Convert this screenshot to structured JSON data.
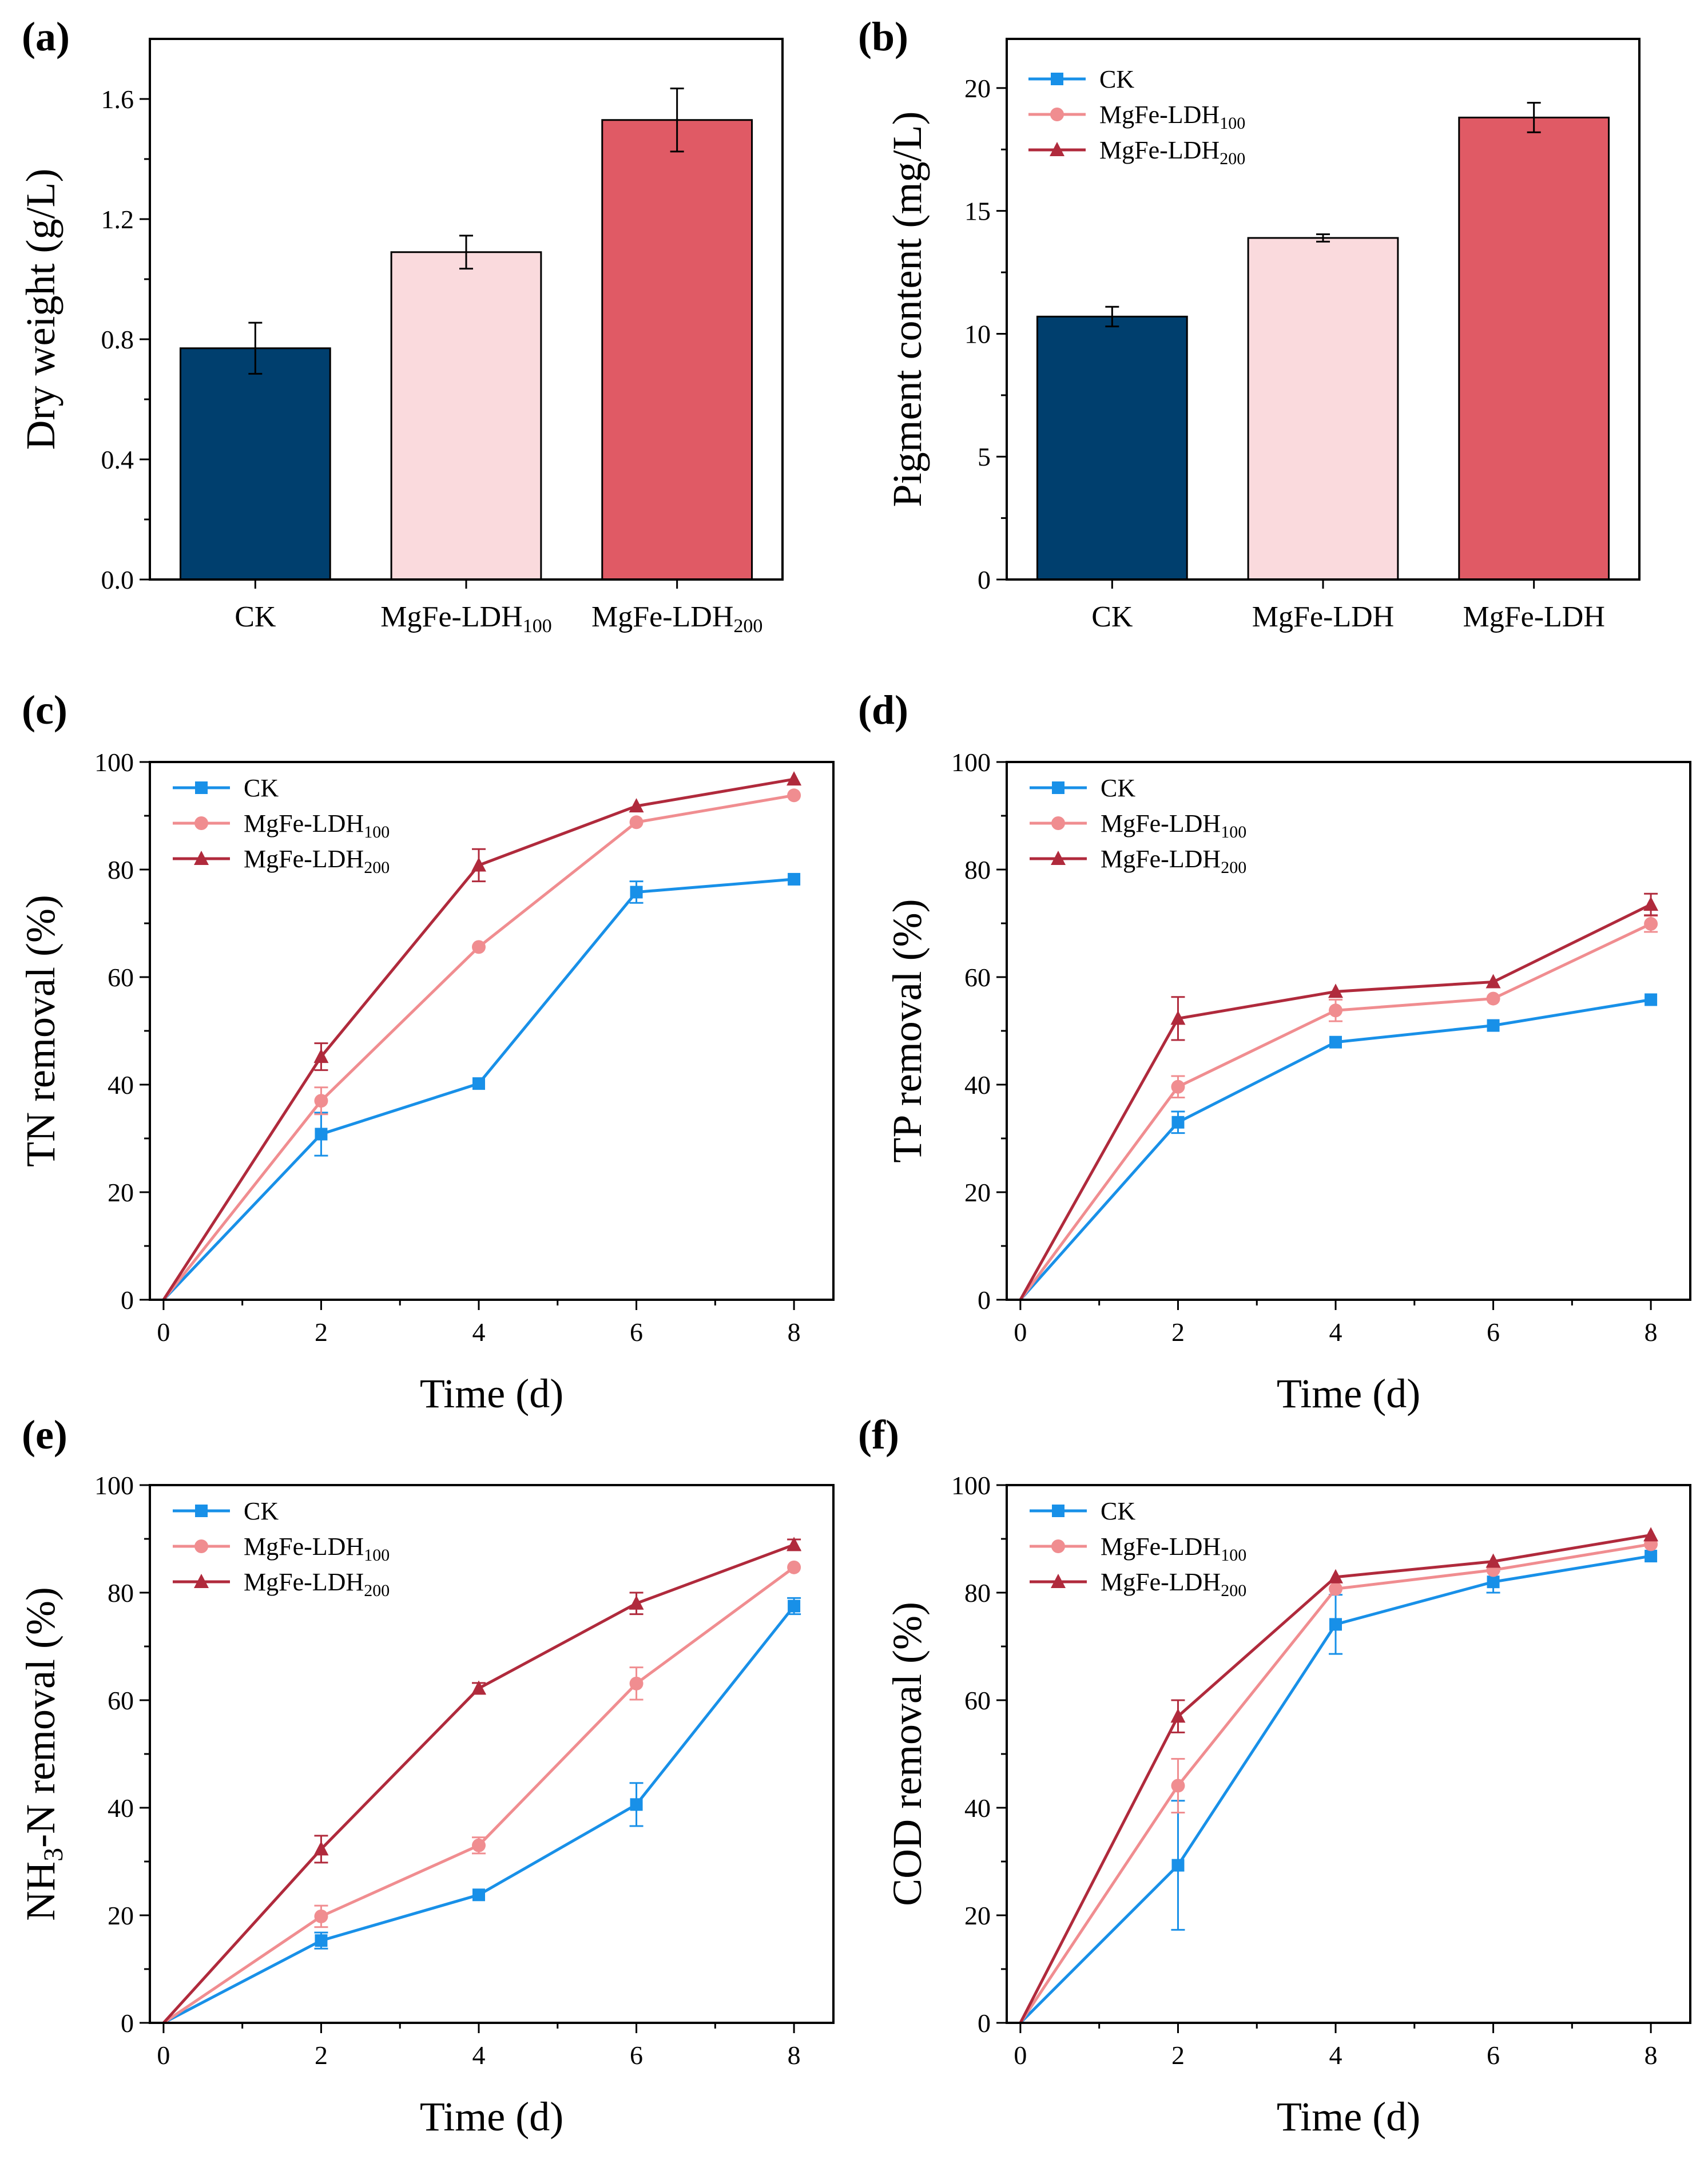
{
  "colors": {
    "ck": "#1890e8",
    "ldh100": "#f08d90",
    "ldh200": "#b02a3c",
    "bar_ck": "#003f6e",
    "bar_ldh100": "#fadadd",
    "bar_ldh200": "#e05a65"
  },
  "chart_data": [
    {
      "id": "a",
      "panel_label": "(a)",
      "type": "bar",
      "ylabel": "Dry weight (g/L)",
      "xlabel": "",
      "ylim": [
        0,
        1.8
      ],
      "yticks": [
        "0.0",
        "0.4",
        "0.8",
        "1.2",
        "1.6"
      ],
      "ytick_values": [
        0,
        0.4,
        0.8,
        1.2,
        1.6
      ],
      "categories": [
        {
          "base": "CK",
          "sub": ""
        },
        {
          "base": "MgFe-LDH",
          "sub": "100"
        },
        {
          "base": "MgFe-LDH",
          "sub": "200"
        }
      ],
      "values": [
        0.77,
        1.09,
        1.53
      ],
      "errors": [
        0.085,
        0.055,
        0.105
      ]
    },
    {
      "id": "b",
      "panel_label": "(b)",
      "type": "bar",
      "ylabel": "Pigment content (mg/L)",
      "xlabel": "",
      "ylim": [
        0,
        22
      ],
      "yticks": [
        "0",
        "5",
        "10",
        "15",
        "20"
      ],
      "ytick_values": [
        0,
        5,
        10,
        15,
        20
      ],
      "categories": [
        {
          "base": "CK",
          "sub": ""
        },
        {
          "base": "MgFe-LDH",
          "sub": ""
        },
        {
          "base": "MgFe-LDH",
          "sub": ""
        }
      ],
      "values": [
        10.7,
        13.9,
        18.8
      ],
      "errors": [
        0.4,
        0.15,
        0.6
      ],
      "legend": [
        {
          "base": "CK",
          "sub": ""
        },
        {
          "base": "MgFe-LDH",
          "sub": "100"
        },
        {
          "base": "MgFe-LDH",
          "sub": "200"
        }
      ]
    },
    {
      "id": "c",
      "panel_label": "(c)",
      "type": "line",
      "ylabel": "TN removal (%)",
      "xlabel": "Time (d)",
      "xlim": [
        0,
        8.5
      ],
      "ylim": [
        0,
        100
      ],
      "xticks": [
        "0",
        "2",
        "4",
        "6",
        "8"
      ],
      "xtick_values": [
        0,
        2,
        4,
        6,
        8
      ],
      "yticks": [
        "0",
        "20",
        "40",
        "60",
        "80",
        "100"
      ],
      "ytick_values": [
        0,
        20,
        40,
        60,
        80,
        100
      ],
      "x": [
        0,
        2,
        4,
        6,
        8
      ],
      "series": [
        {
          "name": "CK",
          "sub": "",
          "values": [
            0,
            30.8,
            40.2,
            75.8,
            78.2
          ],
          "errors": [
            0,
            4,
            0,
            2,
            0
          ]
        },
        {
          "name": "MgFe-LDH",
          "sub": "100",
          "values": [
            0,
            37.0,
            65.6,
            88.8,
            93.8
          ],
          "errors": [
            0,
            2.5,
            0,
            0,
            0
          ]
        },
        {
          "name": "MgFe-LDH",
          "sub": "200",
          "values": [
            0,
            45.2,
            80.8,
            91.8,
            96.8
          ],
          "errors": [
            0,
            2.5,
            3,
            0,
            0
          ]
        }
      ]
    },
    {
      "id": "d",
      "panel_label": "(d)",
      "type": "line",
      "ylabel": "TP removal (%)",
      "xlabel": "Time (d)",
      "xlim": [
        0,
        8.5
      ],
      "ylim": [
        0,
        100
      ],
      "xticks": [
        "0",
        "2",
        "4",
        "6",
        "8"
      ],
      "xtick_values": [
        0,
        2,
        4,
        6,
        8
      ],
      "yticks": [
        "0",
        "20",
        "40",
        "60",
        "80",
        "100"
      ],
      "ytick_values": [
        0,
        20,
        40,
        60,
        80,
        100
      ],
      "x": [
        0,
        2,
        4,
        6,
        8
      ],
      "series": [
        {
          "name": "CK",
          "sub": "",
          "values": [
            0,
            33.0,
            47.9,
            51.0,
            55.8
          ],
          "errors": [
            0,
            2,
            0,
            0,
            0
          ]
        },
        {
          "name": "MgFe-LDH",
          "sub": "100",
          "values": [
            0,
            39.6,
            53.8,
            56.0,
            69.9
          ],
          "errors": [
            0,
            2,
            2,
            0,
            1.5
          ]
        },
        {
          "name": "MgFe-LDH",
          "sub": "200",
          "values": [
            0,
            52.3,
            57.3,
            59.1,
            73.5
          ],
          "errors": [
            0,
            4,
            0,
            0,
            2
          ]
        }
      ]
    },
    {
      "id": "e",
      "panel_label": "(e)",
      "type": "line",
      "ylabel": "NH3-N removal (%)",
      "ylabel_parts": {
        "pre": "NH",
        "sub": "3",
        "post": "-N removal (%)"
      },
      "xlabel": "Time (d)",
      "xlim": [
        0,
        8.5
      ],
      "ylim": [
        0,
        100
      ],
      "xticks": [
        "0",
        "2",
        "4",
        "6",
        "8"
      ],
      "xtick_values": [
        0,
        2,
        4,
        6,
        8
      ],
      "yticks": [
        "0",
        "20",
        "40",
        "60",
        "80",
        "100"
      ],
      "ytick_values": [
        0,
        20,
        40,
        60,
        80,
        100
      ],
      "x": [
        0,
        2,
        4,
        6,
        8
      ],
      "series": [
        {
          "name": "CK",
          "sub": "",
          "values": [
            0,
            15.3,
            23.8,
            40.6,
            77.5
          ],
          "errors": [
            0,
            1.5,
            0,
            4,
            1.5
          ]
        },
        {
          "name": "MgFe-LDH",
          "sub": "100",
          "values": [
            0,
            19.8,
            33.0,
            63.1,
            84.7
          ],
          "errors": [
            0,
            2,
            1.5,
            3,
            0
          ]
        },
        {
          "name": "MgFe-LDH",
          "sub": "200",
          "values": [
            0,
            32.3,
            62.2,
            78.0,
            88.9
          ],
          "errors": [
            0,
            2.5,
            1,
            2,
            1
          ]
        }
      ]
    },
    {
      "id": "f",
      "panel_label": "(f)",
      "type": "line",
      "ylabel": "COD removal (%)",
      "xlabel": "Time (d)",
      "xlim": [
        0,
        8.5
      ],
      "ylim": [
        0,
        100
      ],
      "xticks": [
        "0",
        "2",
        "4",
        "6",
        "8"
      ],
      "xtick_values": [
        0,
        2,
        4,
        6,
        8
      ],
      "yticks": [
        "0",
        "20",
        "40",
        "60",
        "80",
        "100"
      ],
      "ytick_values": [
        0,
        20,
        40,
        60,
        80,
        100
      ],
      "x": [
        0,
        2,
        4,
        6,
        8
      ],
      "series": [
        {
          "name": "CK",
          "sub": "",
          "values": [
            0,
            29.3,
            74.1,
            82.0,
            86.8
          ],
          "errors": [
            0,
            12,
            5.5,
            2,
            0
          ]
        },
        {
          "name": "MgFe-LDH",
          "sub": "100",
          "values": [
            0,
            44.1,
            80.7,
            84.2,
            89.0
          ],
          "errors": [
            0,
            5,
            0,
            0,
            0
          ]
        },
        {
          "name": "MgFe-LDH",
          "sub": "200",
          "values": [
            0,
            57.0,
            82.9,
            85.8,
            90.7
          ],
          "errors": [
            0,
            3,
            0,
            0,
            0
          ]
        }
      ]
    }
  ]
}
